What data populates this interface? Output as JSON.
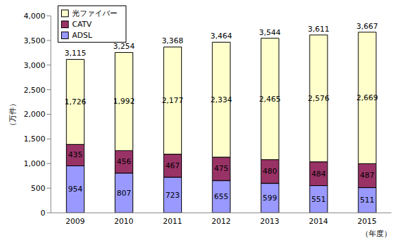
{
  "chart_data": {
    "type": "bar",
    "stacked": true,
    "data_labels": true,
    "grid": false,
    "legend": "upper left",
    "y_label": "（万件）",
    "x_label": "（年度）",
    "categories": [
      "2009",
      "2010",
      "2011",
      "2012",
      "2013",
      "2014",
      "2015"
    ],
    "series": [
      {
        "name": "ADSL",
        "color": "#9999ff",
        "values": [
          954,
          807,
          723,
          655,
          599,
          551,
          511
        ],
        "value_labels": [
          "954",
          "807",
          "723",
          "655",
          "599",
          "551",
          "511"
        ]
      },
      {
        "name": "CATV",
        "color": "#993366",
        "values": [
          435,
          456,
          467,
          475,
          480,
          484,
          487
        ],
        "value_labels": [
          "435",
          "456",
          "467",
          "475",
          "480",
          "484",
          "487"
        ]
      },
      {
        "name": "光ファイバー",
        "color": "#ffffcc",
        "values": [
          1726,
          1992,
          2177,
          2334,
          2465,
          2576,
          2669
        ],
        "value_labels": [
          "1,726",
          "1,992",
          "2,177",
          "2,334",
          "2,465",
          "2,576",
          "2,669"
        ]
      }
    ],
    "totals": [
      3115,
      3254,
      3368,
      3464,
      3544,
      3611,
      3667
    ],
    "total_labels": [
      "3,115",
      "3,254",
      "3,368",
      "3,464",
      "3,544",
      "3,611",
      "3,667"
    ],
    "ylim": [
      0,
      4000
    ],
    "yticks": [
      0,
      500,
      {
        "value": 1000,
        "label": "1,000"
      },
      {
        "value": 1500,
        "label": "1,500"
      },
      {
        "value": 2000,
        "label": "2,000"
      },
      {
        "value": 2500,
        "label": "2,500"
      },
      {
        "value": 3000,
        "label": "3,000"
      },
      {
        "value": 3500,
        "label": "3,500"
      },
      {
        "value": 4000,
        "label": "4,000"
      }
    ]
  }
}
